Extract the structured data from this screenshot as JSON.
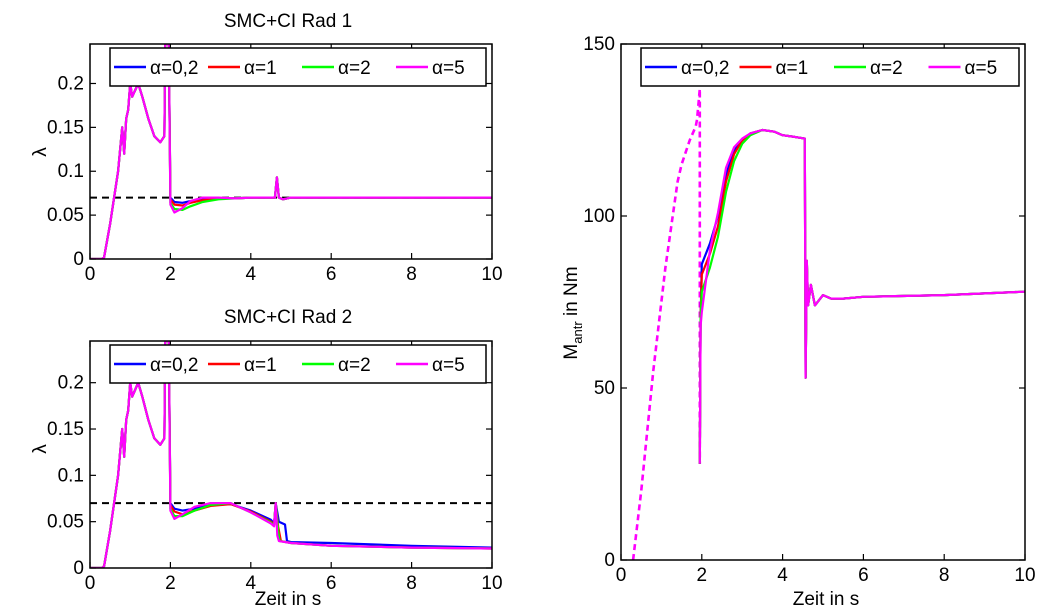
{
  "colors": {
    "alpha_0_2": "#0000ff",
    "alpha_1": "#ff0000",
    "alpha_2": "#00ff00",
    "alpha_5": "#ff00ff",
    "reference": "#000000"
  },
  "chart_data": [
    {
      "id": "rad1",
      "type": "line",
      "title": "SMC+CI Rad 1",
      "xlabel": "",
      "ylabel": "λ",
      "xlim": [
        0,
        10
      ],
      "ylim": [
        0,
        0.245
      ],
      "xticks": [
        0,
        2,
        4,
        6,
        8,
        10
      ],
      "xtick_labels": [
        "0",
        "2",
        "4",
        "6",
        "8",
        "10"
      ],
      "yticks": [
        0,
        0.05,
        0.1,
        0.15,
        0.2
      ],
      "ytick_labels": [
        "0",
        "0.05",
        "0.1",
        "0.15",
        "0.2"
      ],
      "grid": false,
      "legend": {
        "position": "top",
        "entries": [
          "α=0,2",
          "α=1",
          "α=2",
          "α=5"
        ]
      },
      "reference_line": {
        "y": 0.07,
        "style": "dashed"
      },
      "series": [
        {
          "name": "α=0,2",
          "color_key": "alpha_0_2",
          "x": [
            0,
            0.3,
            0.35,
            0.5,
            0.7,
            0.8,
            0.85,
            0.9,
            0.95,
            1.0,
            1.05,
            1.1,
            1.2,
            1.3,
            1.45,
            1.6,
            1.75,
            1.85,
            1.87,
            1.9,
            1.93,
            1.96,
            2.0,
            2.1,
            2.3,
            2.5,
            2.8,
            3.2,
            3.6,
            4.0,
            4.5,
            4.6,
            4.65,
            4.7,
            4.8,
            5.0,
            6.0,
            8.0,
            10.0
          ],
          "y": [
            0,
            0,
            0.002,
            0.04,
            0.1,
            0.15,
            0.12,
            0.16,
            0.17,
            0.2,
            0.185,
            0.19,
            0.2,
            0.185,
            0.16,
            0.14,
            0.133,
            0.14,
            0.245,
            0.245,
            0.245,
            0.245,
            0.07,
            0.065,
            0.064,
            0.066,
            0.068,
            0.069,
            0.069,
            0.07,
            0.07,
            0.07,
            0.093,
            0.07,
            0.068,
            0.07,
            0.07,
            0.07,
            0.07
          ]
        },
        {
          "name": "α=1",
          "color_key": "alpha_1",
          "x": [
            0,
            0.3,
            0.35,
            0.5,
            0.7,
            0.8,
            0.85,
            0.9,
            0.95,
            1.0,
            1.05,
            1.1,
            1.2,
            1.3,
            1.45,
            1.6,
            1.75,
            1.85,
            1.87,
            1.9,
            1.93,
            1.96,
            2.0,
            2.1,
            2.3,
            2.5,
            2.8,
            3.2,
            3.6,
            4.0,
            4.5,
            4.6,
            4.65,
            4.7,
            4.8,
            5.0,
            6.0,
            8.0,
            10.0
          ],
          "y": [
            0,
            0,
            0.002,
            0.04,
            0.1,
            0.15,
            0.12,
            0.16,
            0.17,
            0.2,
            0.185,
            0.19,
            0.2,
            0.185,
            0.16,
            0.14,
            0.133,
            0.14,
            0.245,
            0.245,
            0.245,
            0.245,
            0.068,
            0.062,
            0.061,
            0.064,
            0.067,
            0.069,
            0.069,
            0.07,
            0.07,
            0.07,
            0.093,
            0.07,
            0.068,
            0.07,
            0.07,
            0.07,
            0.07
          ]
        },
        {
          "name": "α=2",
          "color_key": "alpha_2",
          "x": [
            0,
            0.3,
            0.35,
            0.5,
            0.7,
            0.8,
            0.85,
            0.9,
            0.95,
            1.0,
            1.05,
            1.1,
            1.2,
            1.3,
            1.45,
            1.6,
            1.75,
            1.85,
            1.87,
            1.9,
            1.93,
            1.96,
            2.0,
            2.1,
            2.3,
            2.5,
            2.8,
            3.2,
            3.6,
            4.0,
            4.5,
            4.6,
            4.65,
            4.7,
            4.8,
            5.0,
            6.0,
            8.0,
            10.0
          ],
          "y": [
            0,
            0,
            0.002,
            0.04,
            0.1,
            0.15,
            0.12,
            0.16,
            0.17,
            0.2,
            0.185,
            0.19,
            0.2,
            0.185,
            0.16,
            0.14,
            0.133,
            0.14,
            0.245,
            0.245,
            0.245,
            0.245,
            0.064,
            0.057,
            0.056,
            0.06,
            0.065,
            0.068,
            0.069,
            0.07,
            0.07,
            0.07,
            0.093,
            0.07,
            0.068,
            0.07,
            0.07,
            0.07,
            0.07
          ]
        },
        {
          "name": "α=5",
          "color_key": "alpha_5",
          "x": [
            0,
            0.3,
            0.35,
            0.5,
            0.7,
            0.8,
            0.85,
            0.9,
            0.95,
            1.0,
            1.05,
            1.1,
            1.2,
            1.3,
            1.45,
            1.6,
            1.75,
            1.85,
            1.87,
            1.9,
            1.93,
            1.96,
            2.0,
            2.1,
            2.3,
            2.5,
            2.8,
            3.2,
            3.6,
            4.0,
            4.5,
            4.6,
            4.65,
            4.7,
            4.8,
            5.0,
            6.0,
            8.0,
            10.0
          ],
          "y": [
            0,
            0,
            0.002,
            0.04,
            0.1,
            0.15,
            0.12,
            0.16,
            0.17,
            0.2,
            0.185,
            0.19,
            0.2,
            0.185,
            0.16,
            0.14,
            0.133,
            0.14,
            0.245,
            0.245,
            0.245,
            0.245,
            0.062,
            0.053,
            0.058,
            0.066,
            0.07,
            0.07,
            0.069,
            0.07,
            0.07,
            0.07,
            0.093,
            0.07,
            0.068,
            0.07,
            0.07,
            0.07,
            0.07
          ]
        }
      ]
    },
    {
      "id": "rad2",
      "type": "line",
      "title": "SMC+CI Rad 2",
      "xlabel": "Zeit in s",
      "ylabel": "λ",
      "xlim": [
        0,
        10
      ],
      "ylim": [
        0,
        0.245
      ],
      "xticks": [
        0,
        2,
        4,
        6,
        8,
        10
      ],
      "xtick_labels": [
        "0",
        "2",
        "4",
        "6",
        "8",
        "10"
      ],
      "yticks": [
        0,
        0.05,
        0.1,
        0.15,
        0.2
      ],
      "ytick_labels": [
        "0",
        "0.05",
        "0.1",
        "0.15",
        "0.2"
      ],
      "grid": false,
      "legend": {
        "position": "top",
        "entries": [
          "α=0,2",
          "α=1",
          "α=2",
          "α=5"
        ]
      },
      "reference_line": {
        "y": 0.07,
        "style": "dashed"
      },
      "series": [
        {
          "name": "α=0,2",
          "color_key": "alpha_0_2",
          "x": [
            0,
            0.3,
            0.35,
            0.5,
            0.7,
            0.8,
            0.85,
            0.9,
            0.95,
            1.0,
            1.05,
            1.1,
            1.2,
            1.3,
            1.45,
            1.6,
            1.75,
            1.85,
            1.87,
            1.9,
            1.93,
            1.96,
            2.0,
            2.1,
            2.3,
            2.6,
            3.0,
            3.5,
            4.0,
            4.5,
            4.58,
            4.62,
            4.7,
            4.85,
            4.9,
            5.0,
            6.0,
            8.0,
            10.0
          ],
          "y": [
            0,
            0,
            0.002,
            0.04,
            0.1,
            0.15,
            0.12,
            0.16,
            0.17,
            0.2,
            0.185,
            0.19,
            0.2,
            0.185,
            0.16,
            0.14,
            0.133,
            0.14,
            0.245,
            0.245,
            0.245,
            0.245,
            0.07,
            0.064,
            0.062,
            0.064,
            0.068,
            0.069,
            0.062,
            0.052,
            0.048,
            0.07,
            0.05,
            0.047,
            0.029,
            0.028,
            0.027,
            0.024,
            0.022
          ]
        },
        {
          "name": "α=1",
          "color_key": "alpha_1",
          "x": [
            0,
            0.3,
            0.35,
            0.5,
            0.7,
            0.8,
            0.85,
            0.9,
            0.95,
            1.0,
            1.05,
            1.1,
            1.2,
            1.3,
            1.45,
            1.6,
            1.75,
            1.85,
            1.87,
            1.9,
            1.93,
            1.96,
            2.0,
            2.1,
            2.3,
            2.6,
            3.0,
            3.5,
            4.0,
            4.5,
            4.58,
            4.62,
            4.68,
            4.75,
            5.0,
            6.0,
            8.0,
            10.0
          ],
          "y": [
            0,
            0,
            0.002,
            0.04,
            0.1,
            0.15,
            0.12,
            0.16,
            0.17,
            0.2,
            0.185,
            0.19,
            0.2,
            0.185,
            0.16,
            0.14,
            0.133,
            0.14,
            0.245,
            0.245,
            0.245,
            0.245,
            0.068,
            0.061,
            0.058,
            0.062,
            0.067,
            0.069,
            0.061,
            0.05,
            0.047,
            0.07,
            0.045,
            0.029,
            0.027,
            0.024,
            0.022,
            0.021
          ]
        },
        {
          "name": "α=2",
          "color_key": "alpha_2",
          "x": [
            0,
            0.3,
            0.35,
            0.5,
            0.7,
            0.8,
            0.85,
            0.9,
            0.95,
            1.0,
            1.05,
            1.1,
            1.2,
            1.3,
            1.45,
            1.6,
            1.75,
            1.85,
            1.87,
            1.9,
            1.93,
            1.96,
            2.0,
            2.1,
            2.3,
            2.6,
            3.0,
            3.5,
            4.0,
            4.5,
            4.58,
            4.62,
            4.68,
            4.72,
            5.0,
            6.0,
            8.0,
            10.0
          ],
          "y": [
            0,
            0,
            0.002,
            0.04,
            0.1,
            0.15,
            0.12,
            0.16,
            0.17,
            0.2,
            0.185,
            0.19,
            0.2,
            0.185,
            0.16,
            0.14,
            0.133,
            0.14,
            0.245,
            0.245,
            0.245,
            0.245,
            0.064,
            0.056,
            0.056,
            0.062,
            0.068,
            0.07,
            0.06,
            0.049,
            0.046,
            0.07,
            0.04,
            0.029,
            0.027,
            0.024,
            0.022,
            0.021
          ]
        },
        {
          "name": "α=5",
          "color_key": "alpha_5",
          "x": [
            0,
            0.3,
            0.35,
            0.5,
            0.7,
            0.8,
            0.85,
            0.9,
            0.95,
            1.0,
            1.05,
            1.1,
            1.2,
            1.3,
            1.45,
            1.6,
            1.75,
            1.85,
            1.87,
            1.9,
            1.93,
            1.96,
            2.0,
            2.1,
            2.3,
            2.6,
            3.0,
            3.5,
            4.0,
            4.5,
            4.58,
            4.62,
            4.66,
            4.7,
            5.0,
            6.0,
            8.0,
            10.0
          ],
          "y": [
            0,
            0,
            0.002,
            0.04,
            0.1,
            0.15,
            0.12,
            0.16,
            0.17,
            0.2,
            0.185,
            0.19,
            0.2,
            0.185,
            0.16,
            0.14,
            0.133,
            0.14,
            0.245,
            0.245,
            0.245,
            0.245,
            0.062,
            0.053,
            0.058,
            0.066,
            0.07,
            0.07,
            0.06,
            0.048,
            0.045,
            0.07,
            0.035,
            0.029,
            0.027,
            0.024,
            0.022,
            0.021
          ]
        }
      ]
    },
    {
      "id": "torque",
      "type": "line",
      "title": "",
      "xlabel": "Zeit in s",
      "ylabel_main": "M",
      "ylabel_sub": "antr",
      "ylabel_suffix": " in Nm",
      "xlim": [
        0,
        10
      ],
      "ylim": [
        0,
        150
      ],
      "xticks": [
        0,
        2,
        4,
        6,
        8,
        10
      ],
      "xtick_labels": [
        "0",
        "2",
        "4",
        "6",
        "8",
        "10"
      ],
      "yticks": [
        0,
        50,
        100,
        150
      ],
      "ytick_labels": [
        "0",
        "50",
        "100",
        "150"
      ],
      "grid": false,
      "legend": {
        "position": "top",
        "entries": [
          "α=0,2",
          "α=1",
          "α=2",
          "α=5"
        ]
      },
      "dashed_segment": {
        "color_key": "alpha_5",
        "x": [
          0.3,
          0.5,
          0.8,
          1.1,
          1.4,
          1.5,
          1.7,
          1.85,
          1.88,
          1.92,
          1.95,
          1.95
        ],
        "y": [
          0,
          20,
          55,
          85,
          110,
          115,
          122,
          126,
          128,
          133,
          137,
          28
        ]
      },
      "series": [
        {
          "name": "α=0,2",
          "color_key": "alpha_0_2",
          "x": [
            1.95,
            1.97,
            2.0,
            2.2,
            2.4,
            2.6,
            2.8,
            3.0,
            3.2,
            3.5,
            3.8,
            4.0,
            4.3,
            4.55,
            4.57,
            4.6,
            4.63,
            4.7,
            4.8,
            5.0,
            5.2,
            5.5,
            6.0,
            8.0,
            10.0
          ],
          "y": [
            28,
            70,
            86,
            92,
            100,
            112,
            119,
            122,
            124,
            125,
            124.5,
            123.5,
            123,
            122.5,
            53,
            87,
            74,
            80,
            74,
            77,
            76,
            76,
            76.5,
            77,
            78
          ]
        },
        {
          "name": "α=1",
          "color_key": "alpha_1",
          "x": [
            1.95,
            1.97,
            2.0,
            2.2,
            2.4,
            2.6,
            2.8,
            3.0,
            3.2,
            3.5,
            3.8,
            4.0,
            4.3,
            4.55,
            4.57,
            4.6,
            4.63,
            4.7,
            4.8,
            5.0,
            5.2,
            5.5,
            6.0,
            8.0,
            10.0
          ],
          "y": [
            28,
            70,
            83,
            89,
            97,
            110,
            118,
            122,
            124,
            125,
            124.5,
            123.5,
            123,
            122.5,
            53,
            87,
            74,
            80,
            74,
            77,
            76,
            76,
            76.5,
            77,
            78
          ]
        },
        {
          "name": "α=2",
          "color_key": "alpha_2",
          "x": [
            1.95,
            1.97,
            2.0,
            2.2,
            2.4,
            2.6,
            2.8,
            3.0,
            3.2,
            3.5,
            3.8,
            4.0,
            4.3,
            4.55,
            4.57,
            4.6,
            4.63,
            4.7,
            4.8,
            5.0,
            5.2,
            5.5,
            6.0,
            8.0,
            10.0
          ],
          "y": [
            28,
            70,
            78,
            85,
            94,
            107,
            116,
            121,
            123.5,
            125,
            124.5,
            123.5,
            123,
            122.5,
            53,
            87,
            74,
            80,
            74,
            77,
            76,
            76,
            76.5,
            77,
            78
          ]
        },
        {
          "name": "α=5",
          "color_key": "alpha_5",
          "x": [
            1.95,
            1.97,
            2.0,
            2.2,
            2.4,
            2.6,
            2.8,
            3.0,
            3.2,
            3.5,
            3.8,
            4.0,
            4.3,
            4.55,
            4.57,
            4.6,
            4.63,
            4.7,
            4.8,
            5.0,
            5.2,
            5.5,
            6.0,
            8.0,
            10.0
          ],
          "y": [
            28,
            68,
            72,
            90,
            101,
            114,
            120,
            122.5,
            124,
            125,
            124.5,
            123.5,
            123,
            122.5,
            53,
            87,
            74,
            80,
            74,
            77,
            76,
            76,
            76.5,
            77,
            78
          ]
        }
      ]
    }
  ]
}
